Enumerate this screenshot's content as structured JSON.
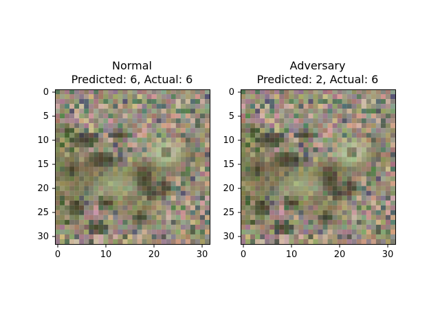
{
  "panels": [
    {
      "title_line1": "Normal",
      "title_line2": "Predicted: 6, Actual: 6",
      "x_ticks": [
        "0",
        "10",
        "20",
        "30"
      ],
      "y_ticks": [
        "0",
        "5",
        "10",
        "15",
        "20",
        "25",
        "30"
      ]
    },
    {
      "title_line1": "Adversary",
      "title_line2": "Predicted: 2, Actual: 6",
      "x_ticks": [
        "0",
        "10",
        "20",
        "30"
      ],
      "y_ticks": [
        "0",
        "5",
        "10",
        "15",
        "20",
        "25",
        "30"
      ]
    }
  ],
  "image": {
    "description_colors": {
      "background": "#9a8f7c",
      "frog_body": "#6f6a46",
      "frog_highlight": "#b9bf98",
      "dark_spots": "#3b3524",
      "pale_patch": "#c8c2b4"
    }
  }
}
